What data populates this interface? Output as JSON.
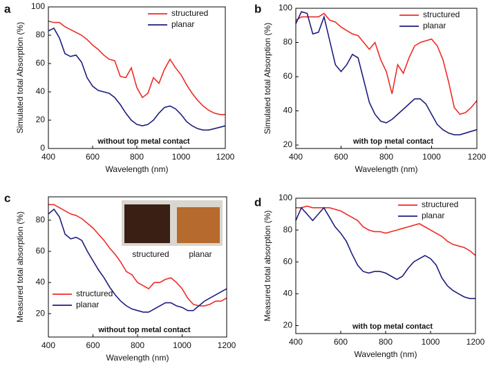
{
  "chart_data": [
    {
      "type": "line",
      "panel_label": "a",
      "ylabel": "Simulated total Absorption (%)",
      "xlabel": "Wavelength (nm)",
      "annotation": "without top metal contact",
      "x": [
        400,
        425,
        450,
        475,
        500,
        525,
        550,
        575,
        600,
        625,
        650,
        675,
        700,
        725,
        750,
        775,
        800,
        825,
        850,
        875,
        900,
        925,
        950,
        975,
        1000,
        1025,
        1050,
        1075,
        1100,
        1125,
        1150,
        1175,
        1200
      ],
      "xlim": [
        400,
        1200
      ],
      "xticks": [
        400,
        600,
        800,
        1000,
        1200
      ],
      "ylim": [
        0,
        100
      ],
      "yticks": [
        0,
        20,
        40,
        60,
        80,
        100
      ],
      "legend": "upper right",
      "series": [
        {
          "name": "structured",
          "color": "#ee2a24",
          "values": [
            90,
            89,
            89,
            86,
            84,
            82,
            80,
            77,
            73,
            70,
            66,
            63,
            62,
            51,
            50,
            57,
            43,
            36,
            39,
            50,
            46,
            56,
            63,
            57,
            52,
            45,
            39,
            34,
            30,
            27,
            25,
            24,
            24
          ]
        },
        {
          "name": "planar",
          "color": "#1c1c7c",
          "values": [
            83,
            85,
            78,
            67,
            65,
            66,
            61,
            50,
            44,
            41,
            40,
            39,
            36,
            31,
            25,
            20,
            17,
            16,
            17,
            20,
            25,
            29,
            30,
            28,
            24,
            19,
            16,
            14,
            13,
            13,
            14,
            15,
            16
          ]
        }
      ]
    },
    {
      "type": "line",
      "panel_label": "b",
      "ylabel": "Simulated total Absorption (%)",
      "xlabel": "Wavelength (nm)",
      "annotation": "with top metal contact",
      "x": [
        400,
        425,
        450,
        475,
        500,
        525,
        550,
        575,
        600,
        625,
        650,
        675,
        700,
        725,
        750,
        775,
        800,
        825,
        850,
        875,
        900,
        925,
        950,
        975,
        1000,
        1025,
        1050,
        1075,
        1100,
        1125,
        1150,
        1175,
        1200
      ],
      "xlim": [
        400,
        1200
      ],
      "xticks": [
        400,
        600,
        800,
        1000,
        1200
      ],
      "ylim": [
        18,
        100
      ],
      "yticks": [
        20,
        40,
        60,
        80,
        100
      ],
      "legend": "upper right",
      "series": [
        {
          "name": "structured",
          "color": "#ee2a24",
          "values": [
            93,
            95,
            95,
            95,
            95,
            97,
            93,
            92,
            89,
            87,
            85,
            84,
            80,
            76,
            80,
            70,
            63,
            50,
            67,
            62,
            71,
            78,
            80,
            81,
            82,
            78,
            70,
            57,
            42,
            38,
            39,
            42,
            46
          ]
        },
        {
          "name": "planar",
          "color": "#1c1c7c",
          "values": [
            91,
            98,
            97,
            85,
            86,
            95,
            81,
            67,
            63,
            67,
            73,
            71,
            58,
            45,
            38,
            34,
            33,
            35,
            38,
            41,
            44,
            47,
            47,
            44,
            38,
            32,
            29,
            27,
            26,
            26,
            27,
            28,
            29
          ]
        }
      ]
    },
    {
      "type": "line",
      "panel_label": "c",
      "ylabel": "Measured total absorption (%)",
      "xlabel": "Wavelength (nm)",
      "annotation": "without top metal contact",
      "inset_labels": [
        "structured",
        "planar"
      ],
      "x": [
        400,
        425,
        450,
        475,
        500,
        525,
        550,
        575,
        600,
        625,
        650,
        675,
        700,
        725,
        750,
        775,
        800,
        825,
        850,
        875,
        900,
        925,
        950,
        975,
        1000,
        1025,
        1050,
        1075,
        1100,
        1125,
        1150,
        1175,
        1200
      ],
      "xlim": [
        400,
        1200
      ],
      "xticks": [
        400,
        600,
        800,
        1000,
        1200
      ],
      "ylim": [
        5,
        95
      ],
      "yticks": [
        20,
        40,
        60,
        80
      ],
      "legend": "lower left",
      "series": [
        {
          "name": "structured",
          "color": "#ee2a24",
          "values": [
            90,
            90,
            88,
            86,
            84,
            83,
            81,
            78,
            75,
            71,
            67,
            62,
            58,
            53,
            47,
            45,
            40,
            38,
            36,
            40,
            40,
            42,
            43,
            40,
            36,
            30,
            26,
            25,
            25,
            26,
            28,
            28,
            30
          ]
        },
        {
          "name": "planar",
          "color": "#1c1c7c",
          "values": [
            84,
            87,
            82,
            71,
            68,
            69,
            67,
            60,
            54,
            48,
            43,
            37,
            32,
            28,
            25,
            23,
            22,
            21,
            21,
            23,
            25,
            27,
            27,
            25,
            24,
            22,
            22,
            25,
            28,
            30,
            32,
            34,
            36
          ]
        }
      ]
    },
    {
      "type": "line",
      "panel_label": "d",
      "ylabel": "Measured total absorption (%)",
      "xlabel": "Wavelength (nm)",
      "annotation": "with top metal contact",
      "x": [
        400,
        425,
        450,
        475,
        500,
        525,
        550,
        575,
        600,
        625,
        650,
        675,
        700,
        725,
        750,
        775,
        800,
        825,
        850,
        875,
        900,
        925,
        950,
        975,
        1000,
        1025,
        1050,
        1075,
        1100,
        1125,
        1150,
        1175,
        1200
      ],
      "xlim": [
        400,
        1200
      ],
      "xticks": [
        400,
        600,
        800,
        1000,
        1200
      ],
      "ylim": [
        15,
        100
      ],
      "yticks": [
        20,
        40,
        60,
        80,
        100
      ],
      "legend": "upper right",
      "series": [
        {
          "name": "structured",
          "color": "#ee2a24",
          "values": [
            94,
            94,
            95,
            94,
            94,
            94,
            94,
            93,
            92,
            90,
            88,
            86,
            82,
            80,
            79,
            79,
            78,
            79,
            80,
            81,
            82,
            83,
            84,
            82,
            80,
            78,
            76,
            73,
            71,
            70,
            69,
            67,
            64
          ]
        },
        {
          "name": "planar",
          "color": "#1c1c7c",
          "values": [
            86,
            94,
            90,
            86,
            90,
            94,
            88,
            82,
            78,
            73,
            65,
            58,
            54,
            53,
            54,
            54,
            53,
            51,
            49,
            51,
            56,
            60,
            62,
            64,
            62,
            58,
            50,
            45,
            42,
            40,
            38,
            37,
            37
          ]
        }
      ]
    }
  ]
}
